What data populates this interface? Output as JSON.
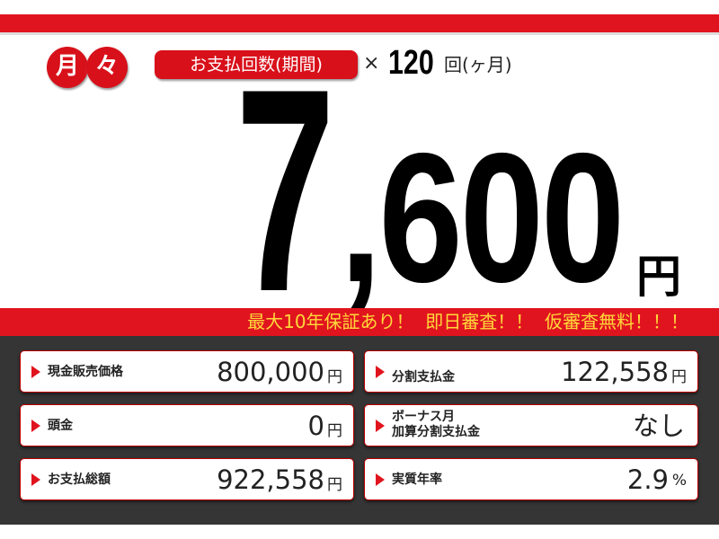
{
  "header": {
    "monthly_badge": [
      "月",
      "々"
    ],
    "payment_count_label": "お支払回数(期間)",
    "times_sign": "×",
    "payment_count": "120",
    "payment_count_unit": "回(ヶ月)"
  },
  "monthly_amount": {
    "lead": "7",
    "rest": ",600",
    "currency": "円"
  },
  "banner": "最大10年保証あり！  即日審査！！  仮審査無料！！！",
  "details": {
    "cash_price": {
      "label": "現金販売価格",
      "value": "800,000",
      "unit": "円"
    },
    "installment_total": {
      "label": "分割支払金",
      "value": "122,558",
      "unit": "円"
    },
    "down_payment": {
      "label": "頭金",
      "value": "0",
      "unit": "円"
    },
    "bonus": {
      "label": "ボーナス月\n加算分割支払金",
      "value": "なし"
    },
    "total_payment": {
      "label": "お支払総額",
      "value": "922,558",
      "unit": "円"
    },
    "apr": {
      "label": "実質年率",
      "value": "2.9",
      "unit": "%"
    }
  },
  "colors": {
    "brand_red": "#e0141e",
    "banner_text": "#ffd83a",
    "panel": "#353535"
  }
}
